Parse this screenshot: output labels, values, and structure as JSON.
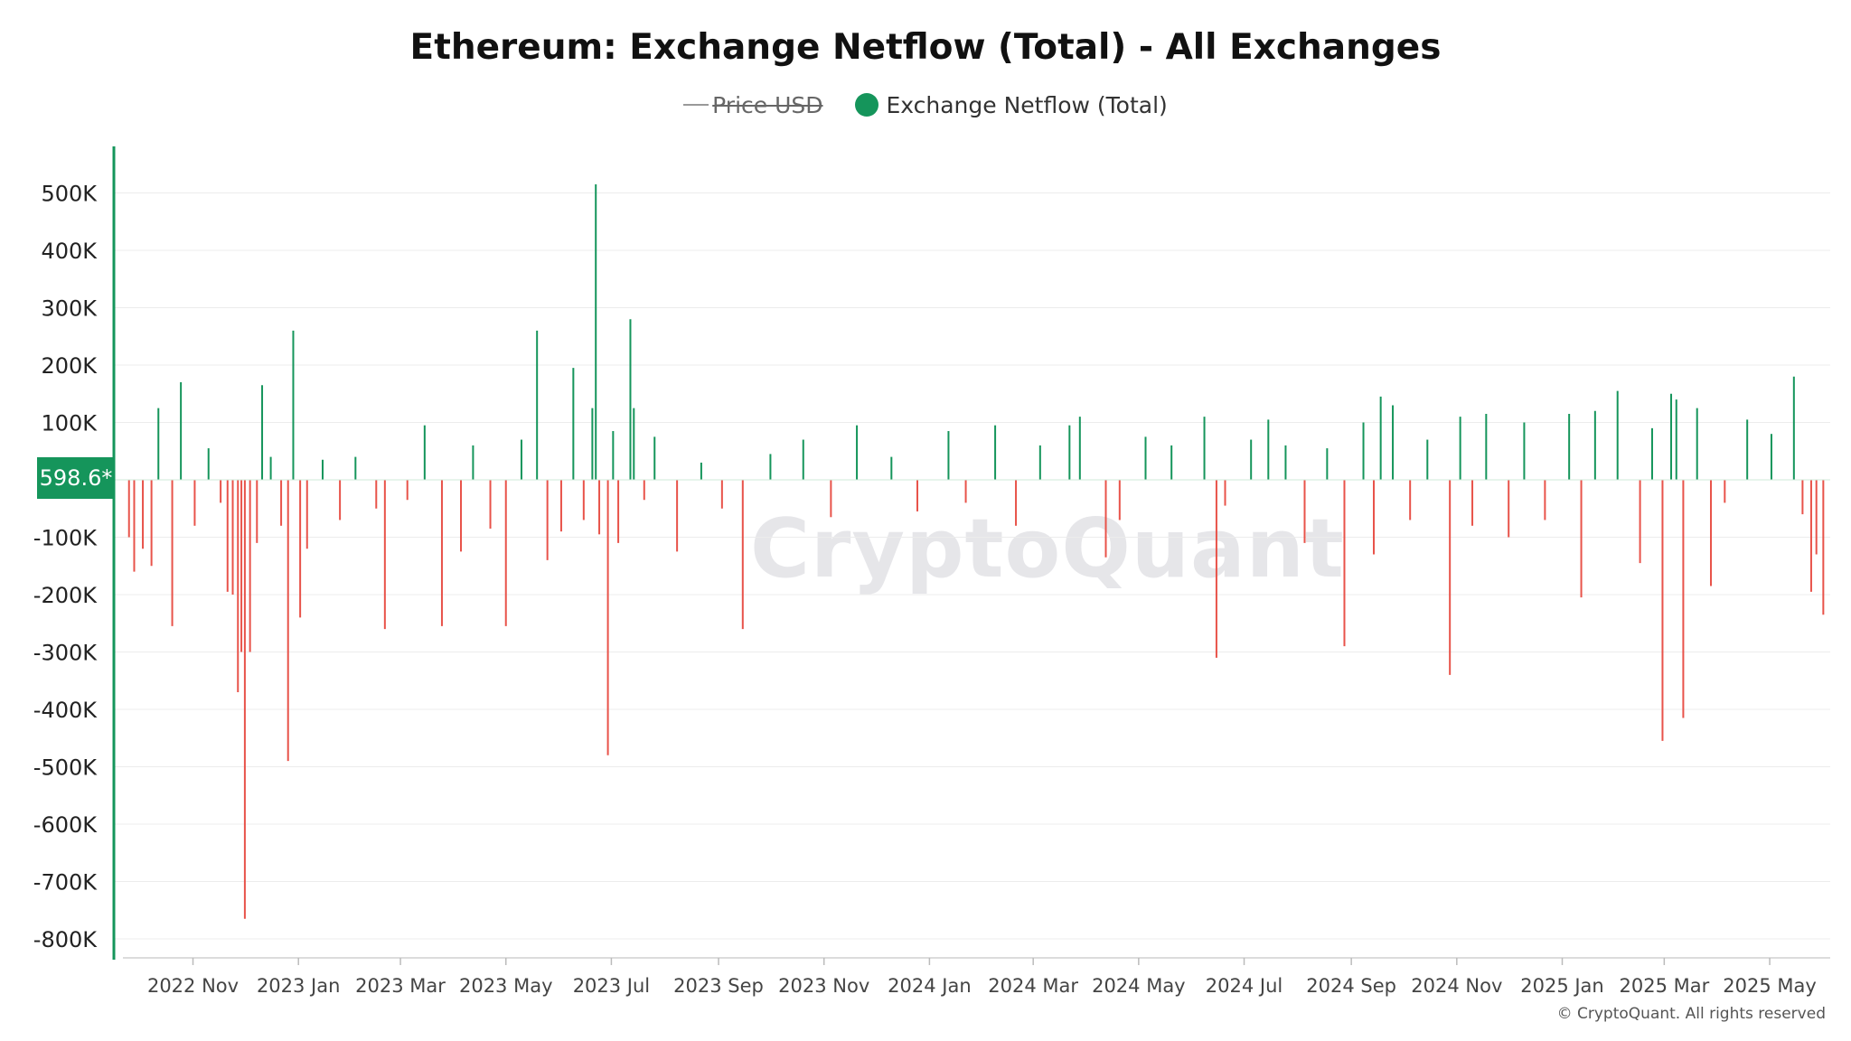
{
  "title": "Ethereum: Exchange Netflow (Total) - All Exchanges",
  "legend": {
    "price_label": "Price USD",
    "netflow_label": "Exchange Netflow (Total)"
  },
  "colors": {
    "positive": "#15955b",
    "negative": "#e8534a",
    "axis_accent": "#15955b",
    "grid": "#ececec"
  },
  "badge": "598.6*",
  "watermark": "CryptoQuant",
  "footer": "© CryptoQuant. All rights reserved",
  "chart_data": {
    "type": "bar",
    "title": "Ethereum: Exchange Netflow (Total) - All Exchanges",
    "ylabel": "",
    "xlabel": "",
    "ylim": [
      -830000,
      580000
    ],
    "yticks": [
      500000,
      400000,
      300000,
      200000,
      100000,
      0,
      -100000,
      -200000,
      -300000,
      -400000,
      -500000,
      -600000,
      -700000,
      -800000
    ],
    "ytick_labels": [
      "500K",
      "400K",
      "300K",
      "200K",
      "100K",
      "",
      "-100K",
      "-200K",
      "-300K",
      "-400K",
      "-500K",
      "-600K",
      "-700K",
      "-800K"
    ],
    "x_range": [
      "2022-09-22",
      "2025-06-05"
    ],
    "xticks": [
      "2022-11-01",
      "2023-01-01",
      "2023-03-01",
      "2023-05-01",
      "2023-07-01",
      "2023-09-01",
      "2023-11-01",
      "2024-01-01",
      "2024-03-01",
      "2024-05-01",
      "2024-07-01",
      "2024-09-01",
      "2024-11-01",
      "2025-01-01",
      "2025-03-01",
      "2025-05-01"
    ],
    "xtick_labels": [
      "2022 Nov",
      "2023 Jan",
      "2023 Mar",
      "2023 May",
      "2023 Jul",
      "2023 Sep",
      "2023 Nov",
      "2024 Jan",
      "2024 Mar",
      "2024 May",
      "2024 Jul",
      "2024 Sep",
      "2024 Nov",
      "2025 Jan",
      "2025 Mar",
      "2025 May"
    ],
    "grid": true,
    "legend_position": "top-center",
    "series": [
      {
        "name": "Exchange Netflow (Total)",
        "points": [
          [
            "2022-09-25",
            -100000
          ],
          [
            "2022-09-28",
            -160000
          ],
          [
            "2022-10-03",
            -120000
          ],
          [
            "2022-10-08",
            -150000
          ],
          [
            "2022-10-12",
            125000
          ],
          [
            "2022-10-20",
            -255000
          ],
          [
            "2022-10-25",
            170000
          ],
          [
            "2022-11-02",
            -80000
          ],
          [
            "2022-11-10",
            55000
          ],
          [
            "2022-11-17",
            -40000
          ],
          [
            "2022-11-21",
            -195000
          ],
          [
            "2022-11-24",
            -200000
          ],
          [
            "2022-11-27",
            -370000
          ],
          [
            "2022-11-29",
            -300000
          ],
          [
            "2022-12-01",
            -765000
          ],
          [
            "2022-12-04",
            -300000
          ],
          [
            "2022-12-08",
            -110000
          ],
          [
            "2022-12-11",
            165000
          ],
          [
            "2022-12-16",
            40000
          ],
          [
            "2022-12-22",
            -80000
          ],
          [
            "2022-12-26",
            -490000
          ],
          [
            "2022-12-29",
            260000
          ],
          [
            "2023-01-02",
            -240000
          ],
          [
            "2023-01-06",
            -120000
          ],
          [
            "2023-01-15",
            35000
          ],
          [
            "2023-01-25",
            -70000
          ],
          [
            "2023-02-03",
            40000
          ],
          [
            "2023-02-15",
            -50000
          ],
          [
            "2023-02-20",
            -260000
          ],
          [
            "2023-03-05",
            -35000
          ],
          [
            "2023-03-15",
            95000
          ],
          [
            "2023-03-25",
            -255000
          ],
          [
            "2023-04-05",
            -125000
          ],
          [
            "2023-04-12",
            60000
          ],
          [
            "2023-04-22",
            -85000
          ],
          [
            "2023-05-01",
            -255000
          ],
          [
            "2023-05-10",
            70000
          ],
          [
            "2023-05-19",
            260000
          ],
          [
            "2023-05-25",
            -140000
          ],
          [
            "2023-06-02",
            -90000
          ],
          [
            "2023-06-09",
            195000
          ],
          [
            "2023-06-15",
            -70000
          ],
          [
            "2023-06-20",
            125000
          ],
          [
            "2023-06-22",
            515000
          ],
          [
            "2023-06-24",
            -95000
          ],
          [
            "2023-06-29",
            -480000
          ],
          [
            "2023-07-02",
            85000
          ],
          [
            "2023-07-05",
            -110000
          ],
          [
            "2023-07-12",
            280000
          ],
          [
            "2023-07-14",
            125000
          ],
          [
            "2023-07-20",
            -35000
          ],
          [
            "2023-07-26",
            75000
          ],
          [
            "2023-08-08",
            -125000
          ],
          [
            "2023-08-22",
            30000
          ],
          [
            "2023-09-03",
            -50000
          ],
          [
            "2023-09-15",
            -260000
          ],
          [
            "2023-10-01",
            45000
          ],
          [
            "2023-10-20",
            70000
          ],
          [
            "2023-11-05",
            -65000
          ],
          [
            "2023-11-20",
            95000
          ],
          [
            "2023-12-10",
            40000
          ],
          [
            "2023-12-25",
            -55000
          ],
          [
            "2024-01-12",
            85000
          ],
          [
            "2024-01-22",
            -40000
          ],
          [
            "2024-02-08",
            95000
          ],
          [
            "2024-02-20",
            -80000
          ],
          [
            "2024-03-05",
            60000
          ],
          [
            "2024-03-22",
            95000
          ],
          [
            "2024-03-28",
            110000
          ],
          [
            "2024-04-12",
            -135000
          ],
          [
            "2024-04-20",
            -70000
          ],
          [
            "2024-05-05",
            75000
          ],
          [
            "2024-05-20",
            60000
          ],
          [
            "2024-06-08",
            110000
          ],
          [
            "2024-06-15",
            -310000
          ],
          [
            "2024-06-20",
            -45000
          ],
          [
            "2024-07-05",
            70000
          ],
          [
            "2024-07-15",
            105000
          ],
          [
            "2024-07-25",
            60000
          ],
          [
            "2024-08-05",
            -110000
          ],
          [
            "2024-08-18",
            55000
          ],
          [
            "2024-08-28",
            -290000
          ],
          [
            "2024-09-08",
            100000
          ],
          [
            "2024-09-14",
            -130000
          ],
          [
            "2024-09-18",
            145000
          ],
          [
            "2024-09-25",
            130000
          ],
          [
            "2024-10-05",
            -70000
          ],
          [
            "2024-10-15",
            70000
          ],
          [
            "2024-10-28",
            -340000
          ],
          [
            "2024-11-03",
            110000
          ],
          [
            "2024-11-10",
            -80000
          ],
          [
            "2024-11-18",
            115000
          ],
          [
            "2024-12-01",
            -100000
          ],
          [
            "2024-12-10",
            100000
          ],
          [
            "2024-12-22",
            -70000
          ],
          [
            "2025-01-05",
            115000
          ],
          [
            "2025-01-12",
            -205000
          ],
          [
            "2025-01-20",
            120000
          ],
          [
            "2025-02-02",
            155000
          ],
          [
            "2025-02-15",
            -145000
          ],
          [
            "2025-02-22",
            90000
          ],
          [
            "2025-02-28",
            -455000
          ],
          [
            "2025-03-05",
            150000
          ],
          [
            "2025-03-08",
            140000
          ],
          [
            "2025-03-12",
            -415000
          ],
          [
            "2025-03-20",
            125000
          ],
          [
            "2025-03-28",
            -185000
          ],
          [
            "2025-04-05",
            -40000
          ],
          [
            "2025-04-18",
            105000
          ],
          [
            "2025-05-02",
            80000
          ],
          [
            "2025-05-15",
            180000
          ],
          [
            "2025-05-20",
            -60000
          ],
          [
            "2025-05-25",
            -195000
          ],
          [
            "2025-05-28",
            -130000
          ],
          [
            "2025-06-01",
            -235000
          ]
        ]
      }
    ]
  }
}
